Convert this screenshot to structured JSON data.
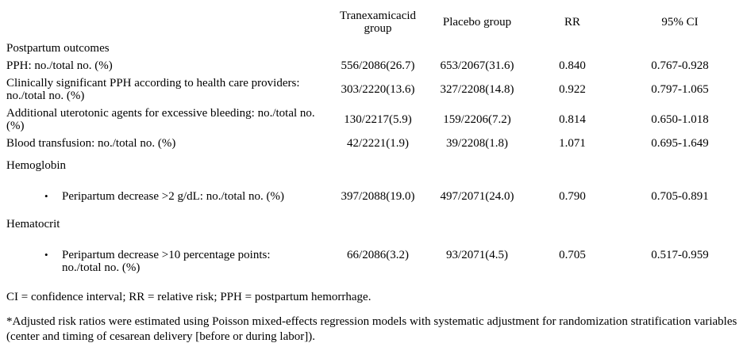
{
  "table": {
    "header": {
      "tx_group": "Tranexamicacid group",
      "placebo_group": "Placebo group",
      "rr": "RR",
      "ci": "95% CI"
    },
    "rows": [
      {
        "label": "Postpartum outcomes"
      },
      {
        "label": "PPH: no./total no. (%)",
        "tx": "556/2086(26.7)",
        "pl": "653/2067(31.6)",
        "rr": "0.840",
        "ci": "0.767-0.928"
      },
      {
        "label": "Clinically significant PPH according to health care providers: no./total no. (%)",
        "tx": "303/2220(13.6)",
        "pl": "327/2208(14.8)",
        "rr": "0.922",
        "ci": "0.797-1.065"
      },
      {
        "label": "Additional uterotonic agents for excessive bleeding: no./total no. (%)",
        "tx": "130/2217(5.9)",
        "pl": "159/2206(7.2)",
        "rr": "0.814",
        "ci": "0.650-1.018"
      },
      {
        "label": "Blood transfusion: no./total no. (%)",
        "tx": "42/2221(1.9)",
        "pl": "39/2208(1.8)",
        "rr": "1.071",
        "ci": "0.695-1.649"
      },
      {
        "label": "Hemoglobin"
      },
      {
        "bullet": "•",
        "label": "Peripartum decrease >2 g/dL: no./total no. (%)",
        "tx": "397/2088(19.0)",
        "pl": "497/2071(24.0)",
        "rr": "0.790",
        "ci": "0.705-0.891"
      },
      {
        "label": "Hematocrit"
      },
      {
        "bullet": "•",
        "label": "Peripartum decrease >10 percentage points: no./total no. (%)",
        "tx": "66/2086(3.2)",
        "pl": "93/2071(4.5)",
        "rr": "0.705",
        "ci": "0.517-0.959"
      }
    ]
  },
  "footnotes": {
    "abbreviations": "CI = confidence interval; RR = relative risk; PPH = postpartum hemorrhage.",
    "adjustment": "*Adjusted risk ratios were estimated using Poisson mixed-effects regression models with systematic adjustment for randomization stratification variables (center and timing of cesarean delivery [before or during labor])."
  }
}
